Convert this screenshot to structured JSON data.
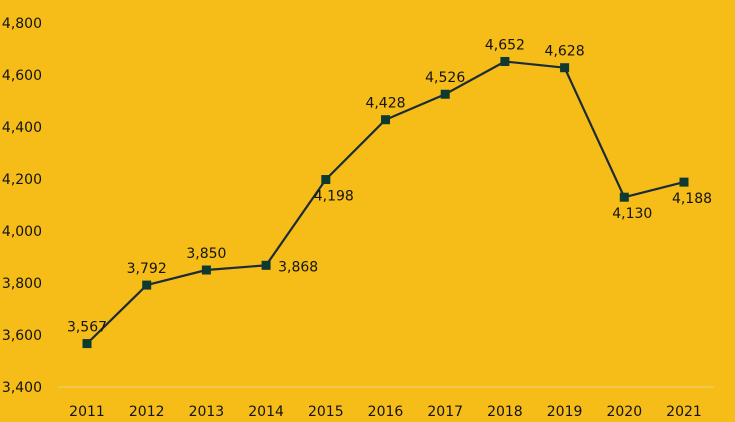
{
  "chart_data": {
    "type": "line",
    "categories": [
      "2011",
      "2012",
      "2013",
      "2014",
      "2015",
      "2016",
      "2017",
      "2018",
      "2019",
      "2020",
      "2021"
    ],
    "series": [
      {
        "values": [
          3567,
          3792,
          3850,
          3868,
          4198,
          4428,
          4526,
          4652,
          4628,
          4130,
          4188
        ],
        "data_labels": [
          "3,567",
          "3,792",
          "3,850",
          "3,868",
          "4,198",
          "4,428",
          "4,526",
          "4,652",
          "4,628",
          "4,130",
          "4,188"
        ],
        "label_positions": [
          "above",
          "above",
          "above",
          "right",
          "below",
          "above",
          "above",
          "above",
          "above",
          "below",
          "below"
        ]
      }
    ],
    "ylim": [
      3400,
      4800
    ],
    "yticks": [
      "3,400",
      "3,600",
      "3,800",
      "4,000",
      "4,200",
      "4,400",
      "4,600",
      "4,800"
    ],
    "grid": false,
    "legend": "none",
    "colors": {
      "background": "#F6BC18",
      "line": "#1B2B3A",
      "marker": "#0E3A2F",
      "axis": "#E9D088",
      "text": "#141414"
    }
  }
}
